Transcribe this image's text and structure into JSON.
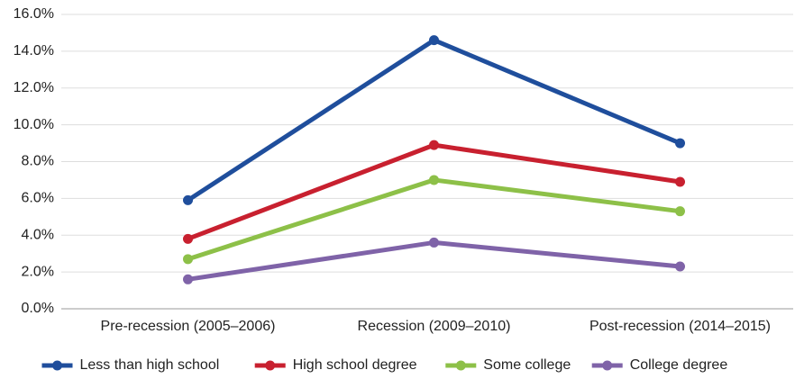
{
  "chart_data": {
    "type": "line",
    "categories": [
      "Pre-recession (2005–2006)",
      "Recession (2009–2010)",
      "Post-recession (2014–2015)"
    ],
    "series": [
      {
        "name": "Less than high school",
        "color": "#1f4e9c",
        "values": [
          5.9,
          14.6,
          9.0
        ]
      },
      {
        "name": "High school degree",
        "color": "#c8202f",
        "values": [
          3.8,
          8.9,
          6.9
        ]
      },
      {
        "name": "Some college",
        "color": "#8dc048",
        "values": [
          2.7,
          7.0,
          5.3
        ]
      },
      {
        "name": "College degree",
        "color": "#7f63a8",
        "values": [
          1.6,
          3.6,
          2.3
        ]
      }
    ],
    "ylim": [
      0,
      16
    ],
    "yticks": [
      {
        "value": 0,
        "label": "0.0%"
      },
      {
        "value": 2,
        "label": "2.0%"
      },
      {
        "value": 4,
        "label": "4.0%"
      },
      {
        "value": 6,
        "label": "6.0%"
      },
      {
        "value": 8,
        "label": "8.0%"
      },
      {
        "value": 10,
        "label": "10.0%"
      },
      {
        "value": 12,
        "label": "12.0%"
      },
      {
        "value": 14,
        "label": "14.0%"
      },
      {
        "value": 16,
        "label": "16.0%"
      }
    ],
    "grid": true,
    "legend": "bottom"
  }
}
